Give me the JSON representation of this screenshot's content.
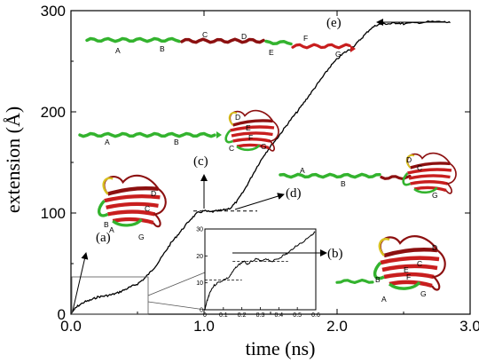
{
  "chart_data": {
    "type": "line",
    "xlabel": "time (ns)",
    "ylabel": "extension (Å)",
    "xlim": [
      0,
      3
    ],
    "ylim": [
      0,
      300
    ],
    "x_ticks": [
      "0.0",
      "1.0",
      "2.0",
      "3.0"
    ],
    "y_ticks": [
      "0",
      "100",
      "200",
      "300"
    ],
    "series": [
      {
        "values_x": [
          0.0,
          0.02,
          0.05,
          0.1,
          0.15,
          0.2,
          0.25,
          0.3,
          0.35,
          0.4,
          0.45,
          0.5,
          0.55,
          0.6,
          0.65,
          0.7,
          0.75,
          0.8,
          0.85,
          0.9,
          0.95,
          1.0,
          1.05,
          1.1,
          1.15,
          1.2,
          1.25,
          1.3,
          1.35,
          1.4,
          1.45,
          1.5,
          1.55,
          1.6,
          1.65,
          1.7,
          1.75,
          1.8,
          1.85,
          1.9,
          1.95,
          2.0,
          2.05,
          2.1,
          2.15,
          2.2,
          2.25,
          2.3,
          2.35,
          2.4,
          2.45,
          2.5,
          2.6,
          2.7,
          2.8,
          2.85
        ],
        "values_y": [
          0,
          4,
          8,
          12,
          14,
          17,
          18,
          19,
          21,
          24,
          27,
          30,
          35,
          42,
          50,
          60,
          70,
          78,
          86,
          94,
          100,
          102,
          101,
          102,
          103,
          105,
          112,
          122,
          134,
          146,
          157,
          166,
          174,
          183,
          192,
          200,
          209,
          218,
          227,
          236,
          245,
          252,
          258,
          262,
          268,
          275,
          282,
          286,
          287,
          287,
          288,
          287,
          288,
          289,
          289,
          288
        ]
      }
    ],
    "annotations": [
      "(a)",
      "(b)",
      "(c)",
      "(d)",
      "(e)"
    ],
    "plateau_levels": [
      102,
      288
    ],
    "inset": {
      "xlim": [
        0,
        0.6
      ],
      "ylim": [
        0,
        30
      ],
      "x_ticks": [
        "0",
        "0.1",
        "0.2",
        "0.3",
        "0.4",
        "0.5",
        "0.6"
      ],
      "y_ticks": [
        "0",
        "10",
        "20",
        "30"
      ],
      "plateau_levels": [
        11,
        18
      ],
      "values_x": [
        0,
        0.01,
        0.02,
        0.03,
        0.05,
        0.07,
        0.1,
        0.13,
        0.15,
        0.17,
        0.19,
        0.21,
        0.23,
        0.25,
        0.28,
        0.3,
        0.33,
        0.36,
        0.4,
        0.42,
        0.45,
        0.48,
        0.5,
        0.53,
        0.56,
        0.58,
        0.6
      ],
      "values_y": [
        0,
        3,
        5,
        7,
        9,
        10,
        11,
        12,
        14,
        16,
        17,
        18,
        17,
        18,
        19,
        18,
        19,
        18,
        19,
        20,
        21,
        23,
        24,
        25,
        27,
        28,
        29
      ]
    }
  },
  "structure_labels": {
    "top": [
      "A",
      "B",
      "C",
      "D",
      "E",
      "F",
      "G"
    ],
    "middle": [
      "A",
      "B",
      "C",
      "D",
      "E",
      "F",
      "G"
    ],
    "right": [
      "A",
      "B",
      "D",
      "C",
      "G"
    ],
    "folded_a": [
      "D",
      "C",
      "B",
      "A",
      "G"
    ],
    "folded_b": [
      "D",
      "C",
      "E",
      "B",
      "A",
      "F",
      "G"
    ]
  },
  "colors": {
    "curve": "#000000",
    "strand_green": "#33b32e",
    "strand_red": "#c81e1e",
    "strand_darkred": "#8c1010",
    "loop_yellow": "#d8c020"
  }
}
